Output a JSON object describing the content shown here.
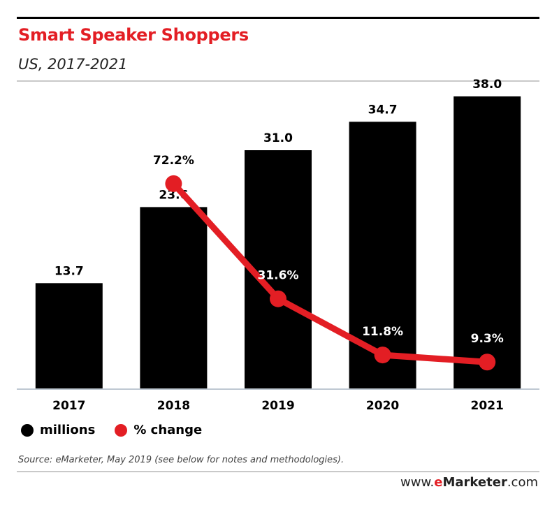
{
  "header": {
    "title": "Smart Speaker Shoppers",
    "subtitle": "US, 2017-2021"
  },
  "colors": {
    "accent": "#e31e24",
    "bar": "#000000",
    "line": "#e31e24"
  },
  "chart_data": {
    "type": "bar",
    "title": "Smart Speaker Shoppers",
    "subtitle": "US, 2017-2021",
    "categories": [
      "2017",
      "2018",
      "2019",
      "2020",
      "2021"
    ],
    "series": [
      {
        "name": "millions",
        "type": "bar",
        "values": [
          13.7,
          23.6,
          31.0,
          34.7,
          38.0
        ],
        "labels": [
          "13.7",
          "23.6",
          "31.0",
          "34.7",
          "38.0"
        ],
        "color": "#000000"
      },
      {
        "name": "% change",
        "type": "line",
        "values": [
          null,
          72.2,
          31.6,
          11.8,
          9.3
        ],
        "labels": [
          "",
          "72.2%",
          "31.6%",
          "11.8%",
          "9.3%"
        ],
        "color": "#e31e24"
      }
    ],
    "xlabel": "",
    "ylabel": "",
    "ylim": [
      0,
      40
    ],
    "pct_ylim": [
      0,
      100
    ],
    "grid": false,
    "legend_position": "bottom-left"
  },
  "legend": {
    "items": [
      {
        "label": "millions",
        "color": "#000000"
      },
      {
        "label": "% change",
        "color": "#e31e24"
      }
    ]
  },
  "footer": {
    "source": "Source: eMarketer, May 2019 (see below for notes and methodologies).",
    "brand_prefix": "www.",
    "brand_accent": "e",
    "brand_main": "Marketer",
    "brand_suffix": ".com"
  }
}
